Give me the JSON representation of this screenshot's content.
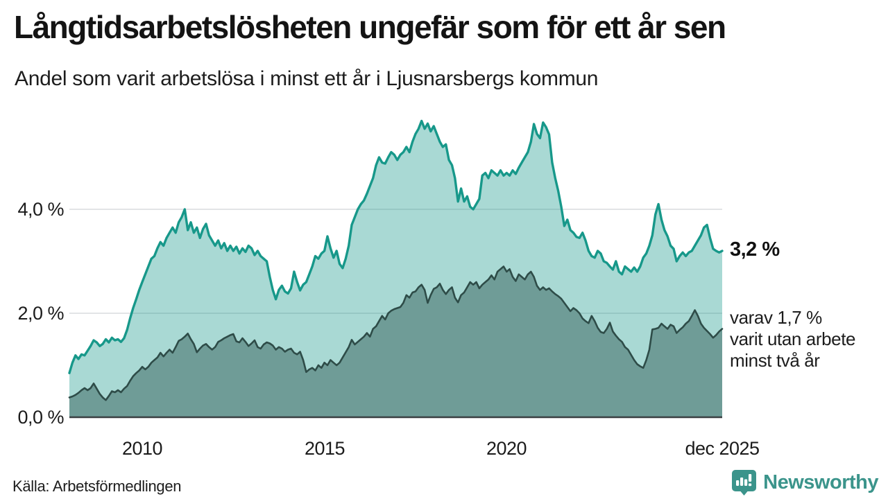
{
  "header": {
    "title": "Långtidsarbetslösheten ungefär som för ett år sen",
    "subtitle": "Andel som varit arbetslösa i minst ett år i Ljusnarsbergs kommun"
  },
  "footer": {
    "source": "Källa: Arbetsförmedlingen",
    "brand_name": "Newsworthy",
    "brand_color": "#3b948b"
  },
  "annotations": {
    "latest_total": "3,2 %",
    "two_year_lines": [
      "varav 1,7 %",
      "varit utan arbete",
      "minst två år"
    ]
  },
  "chart_data": {
    "type": "area",
    "title": "Långtidsarbetslösheten ungefär som för ett år sen",
    "subtitle": "Andel som varit arbetslösa i minst ett år i Ljusnarsbergs kommun",
    "unit": "%",
    "x_start": "jan 2008",
    "x_end": "dec 2025",
    "ylim": [
      0,
      6.2
    ],
    "grid_values": [
      4.0,
      2.0
    ],
    "y_tick_labels": [
      "4,0 %",
      "2,0 %",
      "0,0 %"
    ],
    "x_ticks": [
      {
        "label": "2010",
        "month_index": 24
      },
      {
        "label": "2015",
        "month_index": 84
      },
      {
        "label": "2020",
        "month_index": 144
      },
      {
        "label": "dec 2025",
        "month_index": 215
      }
    ],
    "colors": {
      "one_year_line": "#17988a",
      "one_year_fill": "rgba(23,152,138,0.37)",
      "two_year_line": "#2e4c48",
      "two_year_fill": "#6f9c97",
      "gridline": "#d9dcdd",
      "axis": "#3a3f42"
    },
    "series": [
      {
        "name": "Arbetslösa minst ett år",
        "latest_value": 3.2,
        "values": [
          0.85,
          1.05,
          1.19,
          1.12,
          1.21,
          1.19,
          1.28,
          1.37,
          1.48,
          1.44,
          1.37,
          1.41,
          1.5,
          1.44,
          1.53,
          1.48,
          1.5,
          1.45,
          1.52,
          1.68,
          1.9,
          2.1,
          2.27,
          2.45,
          2.6,
          2.75,
          2.9,
          3.05,
          3.1,
          3.25,
          3.37,
          3.3,
          3.45,
          3.55,
          3.65,
          3.55,
          3.75,
          3.85,
          4.0,
          3.6,
          3.75,
          3.55,
          3.65,
          3.45,
          3.62,
          3.72,
          3.5,
          3.4,
          3.3,
          3.4,
          3.25,
          3.35,
          3.2,
          3.3,
          3.2,
          3.28,
          3.15,
          3.25,
          3.18,
          3.3,
          3.25,
          3.12,
          3.2,
          3.1,
          3.05,
          3.0,
          2.7,
          2.45,
          2.27,
          2.45,
          2.53,
          2.42,
          2.38,
          2.48,
          2.8,
          2.6,
          2.44,
          2.55,
          2.6,
          2.75,
          2.9,
          3.1,
          3.05,
          3.15,
          3.2,
          3.48,
          3.25,
          3.07,
          3.2,
          2.95,
          2.87,
          3.05,
          3.3,
          3.7,
          3.85,
          4.0,
          4.1,
          4.17,
          4.3,
          4.45,
          4.6,
          4.85,
          5.0,
          4.9,
          4.88,
          5.0,
          5.1,
          5.05,
          4.95,
          5.05,
          5.1,
          5.2,
          5.1,
          5.3,
          5.45,
          5.55,
          5.7,
          5.55,
          5.65,
          5.5,
          5.6,
          5.45,
          5.3,
          5.2,
          5.25,
          4.95,
          4.85,
          4.6,
          4.15,
          4.4,
          4.15,
          4.25,
          4.05,
          4.0,
          4.1,
          4.2,
          4.65,
          4.7,
          4.6,
          4.75,
          4.7,
          4.65,
          4.75,
          4.65,
          4.7,
          4.65,
          4.75,
          4.68,
          4.8,
          4.9,
          5.0,
          5.1,
          5.3,
          5.64,
          5.45,
          5.37,
          5.67,
          5.58,
          5.44,
          4.9,
          4.6,
          4.35,
          4.05,
          3.68,
          3.8,
          3.6,
          3.55,
          3.47,
          3.45,
          3.55,
          3.4,
          3.2,
          3.1,
          3.07,
          3.2,
          3.15,
          3.0,
          2.97,
          2.9,
          2.84,
          3.0,
          2.8,
          2.75,
          2.9,
          2.85,
          2.8,
          2.88,
          2.8,
          2.9,
          3.07,
          3.15,
          3.3,
          3.5,
          3.9,
          4.1,
          3.8,
          3.6,
          3.48,
          3.3,
          3.24,
          3.0,
          3.1,
          3.17,
          3.1,
          3.17,
          3.2,
          3.3,
          3.4,
          3.5,
          3.65,
          3.7,
          3.45,
          3.24,
          3.2,
          3.17,
          3.2
        ]
      },
      {
        "name": "Arbetslösa minst två år",
        "latest_value": 1.7,
        "values": [
          0.38,
          0.4,
          0.43,
          0.47,
          0.52,
          0.56,
          0.52,
          0.56,
          0.65,
          0.55,
          0.45,
          0.38,
          0.33,
          0.41,
          0.5,
          0.48,
          0.52,
          0.48,
          0.55,
          0.6,
          0.7,
          0.79,
          0.85,
          0.9,
          0.97,
          0.92,
          0.97,
          1.05,
          1.1,
          1.15,
          1.24,
          1.17,
          1.24,
          1.3,
          1.24,
          1.35,
          1.47,
          1.5,
          1.55,
          1.61,
          1.5,
          1.41,
          1.25,
          1.32,
          1.38,
          1.41,
          1.35,
          1.3,
          1.35,
          1.45,
          1.48,
          1.52,
          1.55,
          1.58,
          1.6,
          1.46,
          1.44,
          1.52,
          1.45,
          1.37,
          1.42,
          1.48,
          1.35,
          1.32,
          1.4,
          1.44,
          1.42,
          1.38,
          1.3,
          1.35,
          1.32,
          1.26,
          1.3,
          1.32,
          1.24,
          1.21,
          1.26,
          1.1,
          0.87,
          0.92,
          0.95,
          0.9,
          1.0,
          0.95,
          1.05,
          1.0,
          1.1,
          1.05,
          1.0,
          1.05,
          1.15,
          1.25,
          1.35,
          1.49,
          1.4,
          1.45,
          1.5,
          1.55,
          1.62,
          1.55,
          1.7,
          1.75,
          1.85,
          1.95,
          1.88,
          2.0,
          2.05,
          2.08,
          2.1,
          2.12,
          2.2,
          2.35,
          2.3,
          2.4,
          2.42,
          2.5,
          2.55,
          2.45,
          2.2,
          2.35,
          2.47,
          2.5,
          2.57,
          2.45,
          2.37,
          2.45,
          2.5,
          2.3,
          2.21,
          2.35,
          2.4,
          2.5,
          2.6,
          2.55,
          2.6,
          2.48,
          2.55,
          2.6,
          2.65,
          2.73,
          2.65,
          2.8,
          2.85,
          2.9,
          2.8,
          2.85,
          2.7,
          2.62,
          2.75,
          2.7,
          2.65,
          2.75,
          2.8,
          2.7,
          2.53,
          2.45,
          2.5,
          2.45,
          2.48,
          2.42,
          2.37,
          2.33,
          2.28,
          2.2,
          2.12,
          2.04,
          2.1,
          2.06,
          2.0,
          1.9,
          1.85,
          1.81,
          1.95,
          1.85,
          1.72,
          1.64,
          1.62,
          1.7,
          1.82,
          1.65,
          1.57,
          1.5,
          1.45,
          1.35,
          1.3,
          1.2,
          1.1,
          1.02,
          0.98,
          0.95,
          1.1,
          1.3,
          1.69,
          1.7,
          1.72,
          1.8,
          1.75,
          1.7,
          1.78,
          1.75,
          1.62,
          1.68,
          1.73,
          1.8,
          1.85,
          1.95,
          2.06,
          1.95,
          1.8,
          1.72,
          1.66,
          1.6,
          1.53,
          1.58,
          1.65,
          1.7
        ]
      }
    ]
  }
}
